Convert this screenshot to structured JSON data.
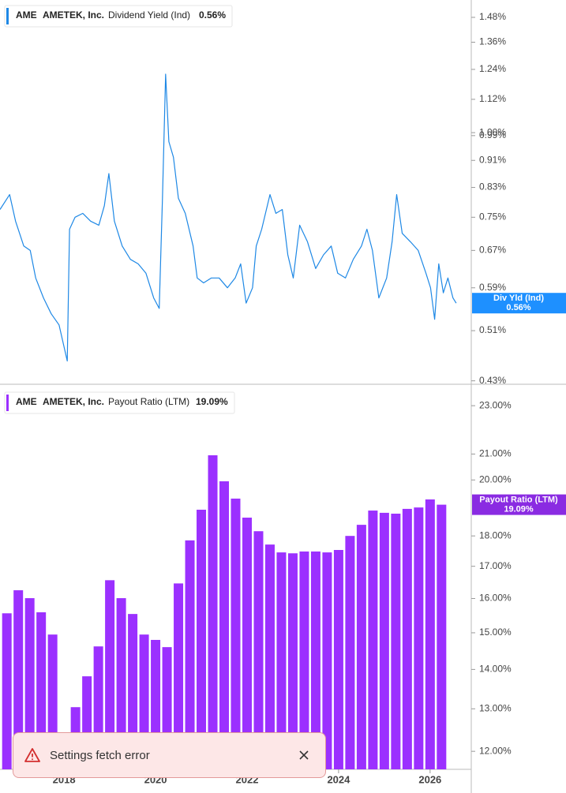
{
  "chart_data": [
    {
      "type": "line",
      "log_scale": true,
      "ticker": "AME",
      "company": "AMETEK, Inc.",
      "legend_value": "0.56%",
      "flag_name": "Div Yld (Ind)",
      "flag_value": "0.56%",
      "xlim": [
        2016.6,
        2026.9
      ],
      "ylim": [
        0.425,
        1.57
      ],
      "yticks": [
        {
          "value": 0.43,
          "label": "0.43%"
        },
        {
          "value": 0.51,
          "label": "0.51%"
        },
        {
          "value": 0.59,
          "label": "0.59%"
        },
        {
          "value": 0.67,
          "label": "0.67%"
        },
        {
          "value": 0.75,
          "label": "0.75%"
        },
        {
          "value": 0.83,
          "label": "0.83%"
        },
        {
          "value": 0.91,
          "label": "0.91%"
        },
        {
          "value": 0.99,
          "label": "0.99%"
        },
        {
          "value": 1.0,
          "label": "1.00%"
        },
        {
          "value": 1.12,
          "label": "1.12%"
        },
        {
          "value": 1.24,
          "label": "1.24%"
        },
        {
          "value": 1.36,
          "label": "1.36%"
        },
        {
          "value": 1.48,
          "label": "1.48%"
        }
      ],
      "x": [
        2016.6,
        2016.81,
        2016.94,
        2017.12,
        2017.26,
        2017.38,
        2017.55,
        2017.72,
        2017.89,
        2018.07,
        2018.12,
        2018.24,
        2018.41,
        2018.58,
        2018.76,
        2018.88,
        2018.98,
        2019.1,
        2019.27,
        2019.45,
        2019.62,
        2019.79,
        2019.96,
        2020.08,
        2020.15,
        2020.22,
        2020.29,
        2020.39,
        2020.5,
        2020.65,
        2020.82,
        2020.91,
        2021.05,
        2021.22,
        2021.39,
        2021.57,
        2021.74,
        2021.86,
        2021.98,
        2022.12,
        2022.2,
        2022.32,
        2022.5,
        2022.63,
        2022.77,
        2022.89,
        2023.01,
        2023.15,
        2023.32,
        2023.5,
        2023.67,
        2023.84,
        2023.98,
        2024.15,
        2024.32,
        2024.5,
        2024.62,
        2024.74,
        2024.88,
        2025.05,
        2025.17,
        2025.27,
        2025.39,
        2025.57,
        2025.74,
        2025.91,
        2026.01,
        2026.1,
        2026.19,
        2026.29,
        2026.39,
        2026.5,
        2026.57
      ],
      "series": [
        {
          "name": "Dividend Yield (Ind)",
          "color": "#1e88e5",
          "values": [
            0.77,
            0.81,
            0.74,
            0.68,
            0.67,
            0.61,
            0.57,
            0.54,
            0.52,
            0.46,
            0.72,
            0.75,
            0.76,
            0.74,
            0.73,
            0.78,
            0.87,
            0.74,
            0.68,
            0.65,
            0.64,
            0.62,
            0.57,
            0.55,
            0.8,
            1.22,
            0.97,
            0.92,
            0.8,
            0.76,
            0.68,
            0.61,
            0.6,
            0.61,
            0.61,
            0.59,
            0.61,
            0.64,
            0.56,
            0.59,
            0.68,
            0.72,
            0.81,
            0.76,
            0.77,
            0.66,
            0.61,
            0.73,
            0.69,
            0.63,
            0.66,
            0.68,
            0.62,
            0.61,
            0.65,
            0.68,
            0.72,
            0.67,
            0.57,
            0.61,
            0.69,
            0.81,
            0.71,
            0.69,
            0.67,
            0.62,
            0.59,
            0.53,
            0.64,
            0.58,
            0.61,
            0.57,
            0.56
          ]
        }
      ]
    },
    {
      "type": "bar",
      "log_scale": true,
      "ticker": "AME",
      "company": "AMETEK, Inc.",
      "legend_value": "19.09%",
      "flag_name": "Payout Ratio (LTM)",
      "flag_value": "19.09%",
      "xlim": [
        2016.6,
        2026.9
      ],
      "ylim": [
        11.6,
        23.84
      ],
      "xticks": [
        2018,
        2020,
        2022,
        2024,
        2026
      ],
      "yticks": [
        {
          "value": 12,
          "label": "12.00%"
        },
        {
          "value": 13,
          "label": "13.00%"
        },
        {
          "value": 14,
          "label": "14.00%"
        },
        {
          "value": 15,
          "label": "15.00%"
        },
        {
          "value": 16,
          "label": "16.00%"
        },
        {
          "value": 17,
          "label": "17.00%"
        },
        {
          "value": 18,
          "label": "18.00%"
        },
        {
          "value": 20,
          "label": "20.00%"
        },
        {
          "value": 21,
          "label": "21.00%"
        },
        {
          "value": 23,
          "label": "23.00%"
        }
      ],
      "x": [
        2016.75,
        2017,
        2017.25,
        2017.5,
        2017.75,
        2018,
        2018.25,
        2018.5,
        2018.75,
        2019,
        2019.25,
        2019.5,
        2019.75,
        2020,
        2020.25,
        2020.5,
        2020.75,
        2021,
        2021.25,
        2021.5,
        2021.75,
        2022,
        2022.25,
        2022.5,
        2022.75,
        2023,
        2023.25,
        2023.5,
        2023.75,
        2024,
        2024.25,
        2024.5,
        2024.75,
        2025,
        2025.25,
        2025.5,
        2025.75,
        2026,
        2026.25
      ],
      "series": [
        {
          "name": "Payout Ratio (LTM)",
          "color": "#9b30ff",
          "values": [
            15.56,
            16.25,
            16.01,
            15.59,
            14.95,
            null,
            13.04,
            13.82,
            14.62,
            16.56,
            16.01,
            15.54,
            14.95,
            14.8,
            14.6,
            16.46,
            17.85,
            18.91,
            20.95,
            19.95,
            19.31,
            18.63,
            18.16,
            17.71,
            17.45,
            17.42,
            17.48,
            17.48,
            17.45,
            17.53,
            18.0,
            18.38,
            18.88,
            18.8,
            18.77,
            18.94,
            18.99,
            19.28,
            19.09
          ]
        }
      ]
    }
  ],
  "toast": {
    "message": "Settings fetch error"
  }
}
